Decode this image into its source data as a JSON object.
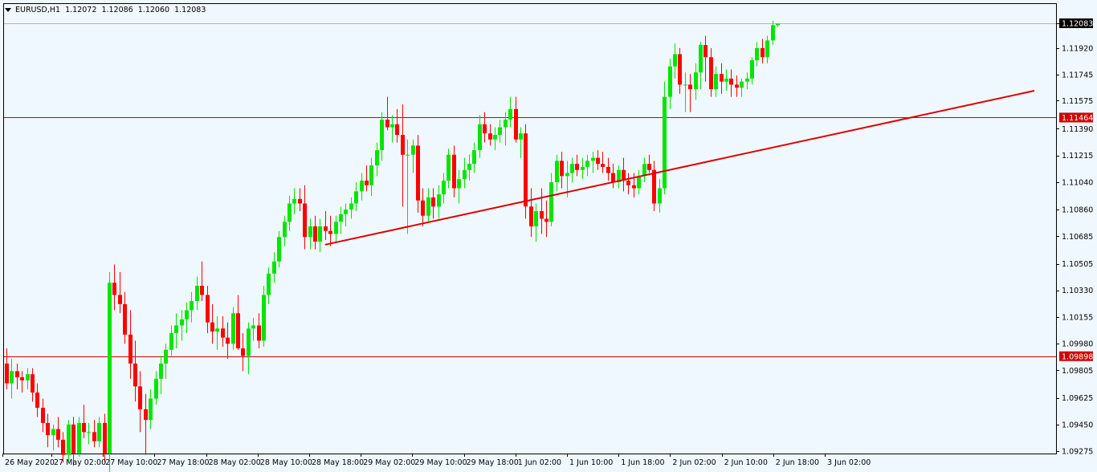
{
  "header": {
    "symbol": "EURUSD,H1",
    "open": "1.12072",
    "high": "1.12086",
    "low": "1.12060",
    "close": "1.12083"
  },
  "colors": {
    "background": "#f0f8ff",
    "bull": "#00e600",
    "bear": "#ff0000",
    "levels": "#d00000",
    "trendline": "#e00000",
    "frame": "#000000"
  },
  "chart_data": {
    "type": "candlestick",
    "symbol": "EURUSD",
    "timeframe": "H1",
    "ylim": [
      1.0927,
      1.1213
    ],
    "y_ticks": [
      "1.12083",
      "1.11920",
      "1.11745",
      "1.11575",
      "1.11390",
      "1.11215",
      "1.11040",
      "1.10860",
      "1.10685",
      "1.10505",
      "1.10330",
      "1.10155",
      "1.09980",
      "1.09805",
      "1.09625",
      "1.09450",
      "1.09275"
    ],
    "x_ticks": [
      "26 May 2020",
      "27 May 02:00",
      "27 May 10:00",
      "27 May 18:00",
      "28 May 02:00",
      "28 May 10:00",
      "28 May 18:00",
      "29 May 02:00",
      "29 May 10:00",
      "29 May 18:00",
      "1 Jun 02:00",
      "1 Jun 10:00",
      "1 Jun 18:00",
      "2 Jun 02:00",
      "2 Jun 10:00",
      "2 Jun 18:00",
      "3 Jun 02:00"
    ],
    "horizontal_levels": [
      {
        "price": 1.11464,
        "label": "1.11464"
      },
      {
        "price": 1.09898,
        "label": "1.09898"
      }
    ],
    "current_price": {
      "price": 1.12083,
      "label": "1.12083"
    },
    "trendline": [
      {
        "bar": 62,
        "price": 1.1063
      },
      {
        "bar": 200,
        "price": 1.1164
      }
    ],
    "candles": [
      [
        1.0985,
        1.0995,
        1.0968,
        1.0972
      ],
      [
        1.0972,
        1.0988,
        1.0962,
        1.098
      ],
      [
        1.098,
        1.0985,
        1.0968,
        1.0976
      ],
      [
        1.0976,
        1.098,
        1.0966,
        1.0974
      ],
      [
        1.0974,
        1.0982,
        1.0968,
        1.0978
      ],
      [
        1.0978,
        1.0982,
        1.096,
        1.0966
      ],
      [
        1.0966,
        1.0972,
        1.095,
        1.0956
      ],
      [
        1.0956,
        1.0962,
        1.094,
        1.0946
      ],
      [
        1.0946,
        1.0952,
        1.093,
        1.0938
      ],
      [
        1.0938,
        1.0945,
        1.0928,
        1.0942
      ],
      [
        1.0942,
        1.095,
        1.093,
        1.0935
      ],
      [
        1.0935,
        1.094,
        1.092,
        1.0925
      ],
      [
        1.0925,
        1.0948,
        1.092,
        1.0945
      ],
      [
        1.0945,
        1.095,
        1.0918,
        1.0926
      ],
      [
        1.0926,
        1.095,
        1.0924,
        1.0946
      ],
      [
        1.0946,
        1.0958,
        1.0936,
        1.094
      ],
      [
        1.094,
        1.0946,
        1.0932,
        1.094
      ],
      [
        1.094,
        1.0948,
        1.093,
        1.0934
      ],
      [
        1.0934,
        1.095,
        1.093,
        1.0946
      ],
      [
        1.0946,
        1.0952,
        1.092,
        1.0926
      ],
      [
        1.0926,
        1.1045,
        1.0905,
        1.1038
      ],
      [
        1.1038,
        1.105,
        1.102,
        1.103
      ],
      [
        1.103,
        1.1045,
        1.1018,
        1.1024
      ],
      [
        1.1024,
        1.1032,
        1.0998,
        1.1004
      ],
      [
        1.1004,
        1.102,
        1.0975,
        1.0985
      ],
      [
        1.0985,
        1.1,
        1.096,
        1.097
      ],
      [
        1.097,
        1.098,
        1.094,
        1.0955
      ],
      [
        1.0955,
        1.0965,
        1.0925,
        1.0948
      ],
      [
        1.0948,
        1.0968,
        1.0942,
        1.0962
      ],
      [
        1.0962,
        1.098,
        1.0958,
        1.0975
      ],
      [
        1.0975,
        1.099,
        1.0965,
        1.0985
      ],
      [
        1.0985,
        1.0998,
        1.0975,
        1.0994
      ],
      [
        1.0994,
        1.101,
        1.099,
        1.1005
      ],
      [
        1.1005,
        1.1018,
        1.0995,
        1.101
      ],
      [
        1.101,
        1.102,
        1.1,
        1.1014
      ],
      [
        1.1014,
        1.1025,
        1.1005,
        1.102
      ],
      [
        1.102,
        1.1032,
        1.1012,
        1.1026
      ],
      [
        1.1026,
        1.1042,
        1.102,
        1.1036
      ],
      [
        1.1036,
        1.1052,
        1.1026,
        1.103
      ],
      [
        1.103,
        1.1036,
        1.1005,
        1.1012
      ],
      [
        1.1012,
        1.1024,
        1.0998,
        1.1006
      ],
      [
        1.1006,
        1.1016,
        1.0994,
        1.1008
      ],
      [
        1.1008,
        1.1016,
        1.0996,
        1.1002
      ],
      [
        1.1002,
        1.1012,
        1.0988,
        1.0998
      ],
      [
        1.0998,
        1.1022,
        1.0994,
        1.1018
      ],
      [
        1.1018,
        1.103,
        1.0994,
        1.0995
      ],
      [
        1.0995,
        1.1005,
        1.098,
        1.099
      ],
      [
        1.099,
        1.1012,
        1.0978,
        1.1008
      ],
      [
        1.1008,
        1.1015,
        1.1,
        1.101
      ],
      [
        1.101,
        1.1018,
        1.0995,
        1.1
      ],
      [
        1.1,
        1.1036,
        1.0996,
        1.103
      ],
      [
        1.103,
        1.1048,
        1.1024,
        1.1044
      ],
      [
        1.1044,
        1.1058,
        1.1038,
        1.1052
      ],
      [
        1.1052,
        1.1072,
        1.1048,
        1.1068
      ],
      [
        1.1068,
        1.1082,
        1.1062,
        1.1078
      ],
      [
        1.1078,
        1.1095,
        1.1072,
        1.109
      ],
      [
        1.109,
        1.11,
        1.1083,
        1.1093
      ],
      [
        1.1093,
        1.11,
        1.1085,
        1.109
      ],
      [
        1.109,
        1.1102,
        1.106,
        1.1068
      ],
      [
        1.1068,
        1.108,
        1.106,
        1.1075
      ],
      [
        1.1075,
        1.1082,
        1.106,
        1.1065
      ],
      [
        1.1065,
        1.108,
        1.1058,
        1.1075
      ],
      [
        1.1075,
        1.1085,
        1.1066,
        1.1072
      ],
      [
        1.1072,
        1.1082,
        1.1062,
        1.107
      ],
      [
        1.107,
        1.1082,
        1.1065,
        1.1078
      ],
      [
        1.1078,
        1.1088,
        1.107,
        1.1083
      ],
      [
        1.1083,
        1.109,
        1.1075,
        1.1086
      ],
      [
        1.1086,
        1.1094,
        1.108,
        1.109
      ],
      [
        1.109,
        1.1104,
        1.1085,
        1.1098
      ],
      [
        1.1098,
        1.111,
        1.1092,
        1.1105
      ],
      [
        1.1105,
        1.1115,
        1.1098,
        1.1102
      ],
      [
        1.1102,
        1.112,
        1.1095,
        1.1115
      ],
      [
        1.1115,
        1.113,
        1.1108,
        1.1125
      ],
      [
        1.1125,
        1.115,
        1.1118,
        1.1145
      ],
      [
        1.1145,
        1.116,
        1.1138,
        1.114
      ],
      [
        1.114,
        1.1148,
        1.113,
        1.1142
      ],
      [
        1.1142,
        1.1152,
        1.113,
        1.1135
      ],
      [
        1.1135,
        1.1155,
        1.1088,
        1.1122
      ],
      [
        1.1122,
        1.1132,
        1.107,
        1.1122
      ],
      [
        1.1122,
        1.1132,
        1.111,
        1.1128
      ],
      [
        1.1128,
        1.1135,
        1.1084,
        1.1092
      ],
      [
        1.1092,
        1.11,
        1.1075,
        1.1082
      ],
      [
        1.1082,
        1.11,
        1.1078,
        1.1094
      ],
      [
        1.1094,
        1.11,
        1.108,
        1.1088
      ],
      [
        1.1088,
        1.1102,
        1.108,
        1.1096
      ],
      [
        1.1096,
        1.111,
        1.109,
        1.1105
      ],
      [
        1.1105,
        1.1126,
        1.11,
        1.1122
      ],
      [
        1.1122,
        1.1128,
        1.1094,
        1.11
      ],
      [
        1.11,
        1.1112,
        1.109,
        1.1106
      ],
      [
        1.1106,
        1.112,
        1.11,
        1.1112
      ],
      [
        1.1112,
        1.1122,
        1.1105,
        1.1116
      ],
      [
        1.1116,
        1.113,
        1.111,
        1.1125
      ],
      [
        1.1125,
        1.1148,
        1.112,
        1.1142
      ],
      [
        1.1142,
        1.115,
        1.113,
        1.1136
      ],
      [
        1.1136,
        1.1142,
        1.1128,
        1.1132
      ],
      [
        1.1132,
        1.114,
        1.1125,
        1.1135
      ],
      [
        1.1135,
        1.1145,
        1.113,
        1.114
      ],
      [
        1.114,
        1.115,
        1.1128,
        1.1145
      ],
      [
        1.1145,
        1.116,
        1.114,
        1.1152
      ],
      [
        1.1152,
        1.116,
        1.113,
        1.1132
      ],
      [
        1.1132,
        1.114,
        1.112,
        1.1136
      ],
      [
        1.1136,
        1.1142,
        1.108,
        1.1088
      ],
      [
        1.1088,
        1.11,
        1.1068,
        1.1075
      ],
      [
        1.1075,
        1.109,
        1.1065,
        1.1085
      ],
      [
        1.1085,
        1.11,
        1.107,
        1.108
      ],
      [
        1.108,
        1.1092,
        1.1068,
        1.1078
      ],
      [
        1.1078,
        1.111,
        1.1075,
        1.1104
      ],
      [
        1.1104,
        1.1122,
        1.1098,
        1.1118
      ],
      [
        1.1118,
        1.1124,
        1.11,
        1.1108
      ],
      [
        1.1108,
        1.1118,
        1.1094,
        1.111
      ],
      [
        1.111,
        1.112,
        1.1104,
        1.1116
      ],
      [
        1.1116,
        1.1122,
        1.1108,
        1.1112
      ],
      [
        1.1112,
        1.112,
        1.1106,
        1.1114
      ],
      [
        1.1114,
        1.1122,
        1.1108,
        1.1118
      ],
      [
        1.1118,
        1.1124,
        1.111,
        1.112
      ],
      [
        1.112,
        1.1125,
        1.1112,
        1.1116
      ],
      [
        1.1116,
        1.1124,
        1.111,
        1.1114
      ],
      [
        1.1114,
        1.112,
        1.1105,
        1.111
      ],
      [
        1.111,
        1.1116,
        1.11,
        1.1104
      ],
      [
        1.1104,
        1.1115,
        1.11,
        1.1112
      ],
      [
        1.1112,
        1.112,
        1.1098,
        1.1105
      ],
      [
        1.1105,
        1.111,
        1.1096,
        1.1102
      ],
      [
        1.1102,
        1.111,
        1.1094,
        1.11
      ],
      [
        1.11,
        1.1112,
        1.1096,
        1.1108
      ],
      [
        1.1108,
        1.112,
        1.1104,
        1.1116
      ],
      [
        1.1116,
        1.1122,
        1.111,
        1.1112
      ],
      [
        1.1112,
        1.1118,
        1.1085,
        1.109
      ],
      [
        1.109,
        1.1106,
        1.1084,
        1.11
      ],
      [
        1.11,
        1.117,
        1.1096,
        1.116
      ],
      [
        1.116,
        1.1185,
        1.1152,
        1.118
      ],
      [
        1.118,
        1.1195,
        1.1172,
        1.1188
      ],
      [
        1.1188,
        1.1192,
        1.1162,
        1.1168
      ],
      [
        1.1168,
        1.1176,
        1.115,
        1.1168
      ],
      [
        1.1168,
        1.1175,
        1.115,
        1.1165
      ],
      [
        1.1165,
        1.1182,
        1.1158,
        1.1176
      ],
      [
        1.1176,
        1.1196,
        1.1165,
        1.1194
      ],
      [
        1.1194,
        1.12,
        1.117,
        1.1186
      ],
      [
        1.1186,
        1.1192,
        1.116,
        1.1165
      ],
      [
        1.1165,
        1.118,
        1.116,
        1.1175
      ],
      [
        1.1175,
        1.1182,
        1.1162,
        1.117
      ],
      [
        1.117,
        1.1178,
        1.1164,
        1.1172
      ],
      [
        1.1172,
        1.1178,
        1.116,
        1.1168
      ],
      [
        1.1168,
        1.1174,
        1.116,
        1.1166
      ],
      [
        1.1166,
        1.1172,
        1.116,
        1.117
      ],
      [
        1.117,
        1.1176,
        1.1165,
        1.1172
      ],
      [
        1.1172,
        1.1186,
        1.1168,
        1.1184
      ],
      [
        1.1184,
        1.1196,
        1.118,
        1.1192
      ],
      [
        1.1192,
        1.1198,
        1.1182,
        1.1186
      ],
      [
        1.1186,
        1.12,
        1.1182,
        1.1197
      ],
      [
        1.1197,
        1.121,
        1.1194,
        1.1207
      ],
      [
        1.1207,
        1.1208,
        1.1206,
        1.1208
      ]
    ]
  }
}
